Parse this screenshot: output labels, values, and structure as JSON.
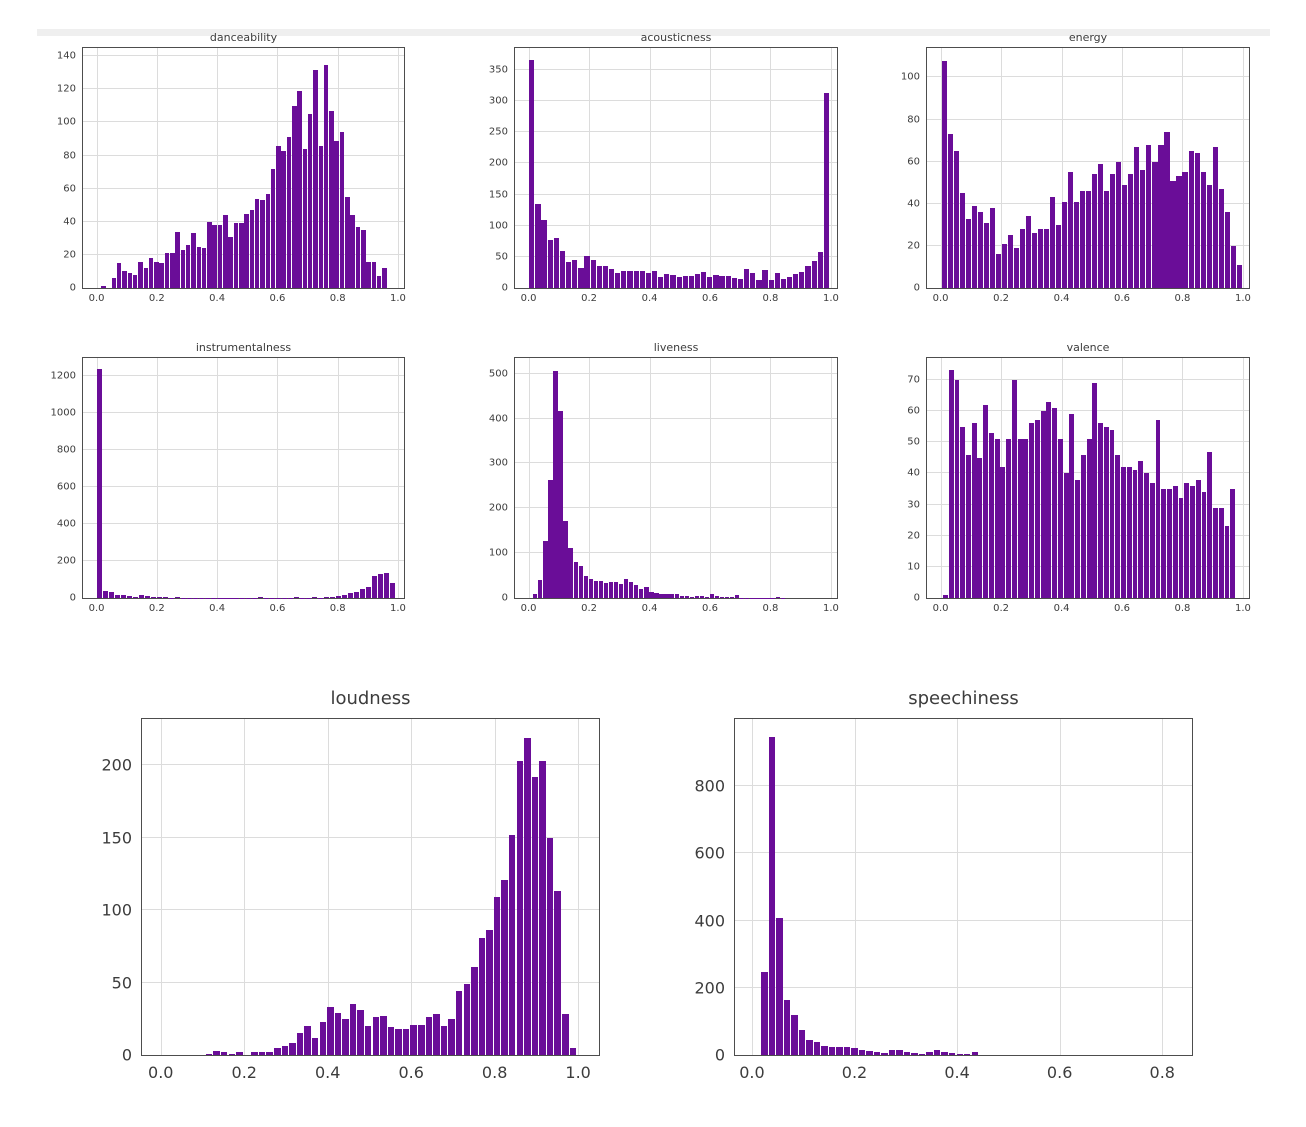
{
  "figure": {
    "description": "Grid of 8 histograms of audio feature distributions",
    "bar_color": "#6a0d98",
    "grid_color": "#dcdcdc",
    "axis_color": "#4d4d4d",
    "text_color": "#3c3c3c",
    "top_band_color": "#efefef",
    "background": "#ffffff"
  },
  "chart_data": [
    {
      "type": "bar",
      "title": "danceability",
      "xlabel": "",
      "ylabel": "",
      "grid": true,
      "xlim": [
        -0.045,
        1.02
      ],
      "ylim": [
        0,
        145
      ],
      "xticks": [
        0.0,
        0.2,
        0.4,
        0.6,
        0.8,
        1.0
      ],
      "yticks": [
        0,
        20,
        40,
        60,
        80,
        100,
        120,
        140
      ],
      "bins_start": 0.015,
      "bin_width": 0.0176,
      "values": [
        1,
        0,
        6,
        15,
        10,
        9,
        8,
        16,
        12,
        18,
        16,
        15,
        21,
        21,
        34,
        23,
        26,
        33,
        25,
        24,
        40,
        38,
        38,
        44,
        31,
        39,
        39,
        45,
        47,
        54,
        53,
        57,
        72,
        86,
        83,
        91,
        110,
        119,
        84,
        105,
        132,
        86,
        135,
        107,
        89,
        94,
        55,
        44,
        37,
        35,
        16,
        16,
        7,
        12
      ]
    },
    {
      "type": "bar",
      "title": "acousticness",
      "xlabel": "",
      "ylabel": "",
      "grid": true,
      "xlim": [
        -0.045,
        1.02
      ],
      "ylim": [
        0,
        385
      ],
      "xticks": [
        0.0,
        0.2,
        0.4,
        0.6,
        0.8,
        1.0
      ],
      "yticks": [
        0,
        50,
        100,
        150,
        200,
        250,
        300,
        350
      ],
      "bins_start": 0.002,
      "bin_width": 0.0203,
      "values": [
        365,
        135,
        109,
        77,
        81,
        59,
        41,
        45,
        32,
        51,
        45,
        36,
        35,
        30,
        24,
        28,
        28,
        28,
        27,
        24,
        28,
        18,
        22,
        21,
        17,
        20,
        19,
        22,
        26,
        17,
        21,
        19,
        19,
        16,
        15,
        30,
        24,
        13,
        29,
        13,
        24,
        15,
        17,
        22,
        25,
        35,
        43,
        57,
        313
      ]
    },
    {
      "type": "bar",
      "title": "energy",
      "xlabel": "",
      "ylabel": "",
      "grid": true,
      "xlim": [
        -0.045,
        1.02
      ],
      "ylim": [
        0,
        114
      ],
      "xticks": [
        0.0,
        0.2,
        0.4,
        0.6,
        0.8,
        1.0
      ],
      "yticks": [
        0,
        20,
        40,
        60,
        80,
        100
      ],
      "bins_start": 0.004,
      "bin_width": 0.0199,
      "values": [
        108,
        73,
        65,
        45,
        33,
        39,
        36,
        31,
        38,
        16,
        21,
        25,
        19,
        28,
        34,
        26,
        28,
        28,
        43,
        30,
        41,
        55,
        41,
        46,
        46,
        54,
        59,
        46,
        54,
        60,
        49,
        54,
        67,
        56,
        68,
        60,
        68,
        74,
        51,
        53,
        55,
        65,
        64,
        55,
        49,
        67,
        47,
        36,
        20,
        11
      ]
    },
    {
      "type": "bar",
      "title": "instrumentalness",
      "xlabel": "",
      "ylabel": "",
      "grid": true,
      "xlim": [
        -0.045,
        1.02
      ],
      "ylim": [
        0,
        1300
      ],
      "xticks": [
        0.0,
        0.2,
        0.4,
        0.6,
        0.8,
        1.0
      ],
      "yticks": [
        0,
        200,
        400,
        600,
        800,
        1000,
        1200
      ],
      "bins_start": 0.002,
      "bin_width": 0.0198,
      "values": [
        1240,
        38,
        30,
        18,
        15,
        12,
        8,
        14,
        10,
        5,
        4,
        3,
        2,
        8,
        1,
        1,
        1,
        1,
        1,
        1,
        1,
        1,
        1,
        1,
        1,
        1,
        1,
        8,
        1,
        1,
        1,
        1,
        1,
        8,
        1,
        1,
        7,
        1,
        5,
        8,
        12,
        18,
        28,
        35,
        48,
        62,
        120,
        130,
        133,
        80
      ]
    },
    {
      "type": "bar",
      "title": "liveness",
      "xlabel": "",
      "ylabel": "",
      "grid": true,
      "xlim": [
        -0.045,
        1.02
      ],
      "ylim": [
        0,
        535
      ],
      "xticks": [
        0.0,
        0.2,
        0.4,
        0.6,
        0.8,
        1.0
      ],
      "yticks": [
        0,
        100,
        200,
        300,
        400,
        500
      ],
      "bins_start": 0.015,
      "bin_width": 0.0167,
      "values": [
        8,
        41,
        127,
        263,
        506,
        417,
        171,
        112,
        80,
        72,
        50,
        42,
        38,
        37,
        33,
        35,
        36,
        32,
        42,
        36,
        29,
        21,
        24,
        13,
        12,
        10,
        8,
        8,
        9,
        5,
        4,
        3,
        5,
        4,
        2,
        8,
        4,
        2,
        3,
        2,
        6,
        1,
        1,
        1,
        1,
        1,
        1,
        1,
        2,
        1
      ]
    },
    {
      "type": "bar",
      "title": "valence",
      "xlabel": "",
      "ylabel": "",
      "grid": true,
      "xlim": [
        -0.045,
        1.02
      ],
      "ylim": [
        0,
        77
      ],
      "xticks": [
        0.0,
        0.2,
        0.4,
        0.6,
        0.8,
        1.0
      ],
      "yticks": [
        0,
        10,
        20,
        30,
        40,
        50,
        60,
        70
      ],
      "bins_start": 0.008,
      "bin_width": 0.019,
      "values": [
        1,
        73,
        70,
        55,
        46,
        56,
        45,
        62,
        53,
        51,
        42,
        51,
        70,
        51,
        51,
        56,
        57,
        60,
        63,
        61,
        51,
        40,
        59,
        38,
        46,
        51,
        69,
        56,
        55,
        54,
        46,
        42,
        42,
        41,
        44,
        40,
        37,
        57,
        35,
        35,
        36,
        32,
        37,
        36,
        38,
        34,
        47,
        29,
        29,
        23,
        35
      ]
    },
    {
      "type": "bar",
      "title": "loudness",
      "xlabel": "",
      "ylabel": "",
      "grid": true,
      "xlim": [
        -0.045,
        1.05
      ],
      "ylim": [
        0,
        232
      ],
      "xticks": [
        0.0,
        0.2,
        0.4,
        0.6,
        0.8,
        1.0
      ],
      "yticks": [
        0,
        50,
        100,
        150,
        200
      ],
      "bins_start": 0.108,
      "bin_width": 0.01816,
      "values": [
        1,
        3,
        2,
        1,
        2,
        0,
        2,
        2,
        2,
        5,
        6,
        8,
        15,
        20,
        12,
        23,
        33,
        29,
        25,
        35,
        31,
        20,
        26,
        27,
        19,
        18,
        18,
        21,
        21,
        26,
        28,
        20,
        25,
        44,
        49,
        61,
        81,
        86,
        109,
        121,
        152,
        203,
        219,
        192,
        203,
        150,
        113,
        28,
        5
      ]
    },
    {
      "type": "bar",
      "title": "speechiness",
      "xlabel": "",
      "ylabel": "",
      "grid": true,
      "xlim": [
        -0.033,
        0.858
      ],
      "ylim": [
        0,
        1000
      ],
      "xticks": [
        0.0,
        0.2,
        0.4,
        0.6,
        0.8
      ],
      "yticks": [
        0,
        200,
        400,
        600,
        800
      ],
      "bins_start": 0.018,
      "bin_width": 0.01465,
      "values": [
        248,
        945,
        408,
        165,
        118,
        73,
        46,
        40,
        28,
        25,
        24,
        25,
        20,
        15,
        12,
        8,
        5,
        15,
        15,
        8,
        5,
        3,
        8,
        15,
        10,
        6,
        3,
        4,
        8
      ]
    }
  ]
}
